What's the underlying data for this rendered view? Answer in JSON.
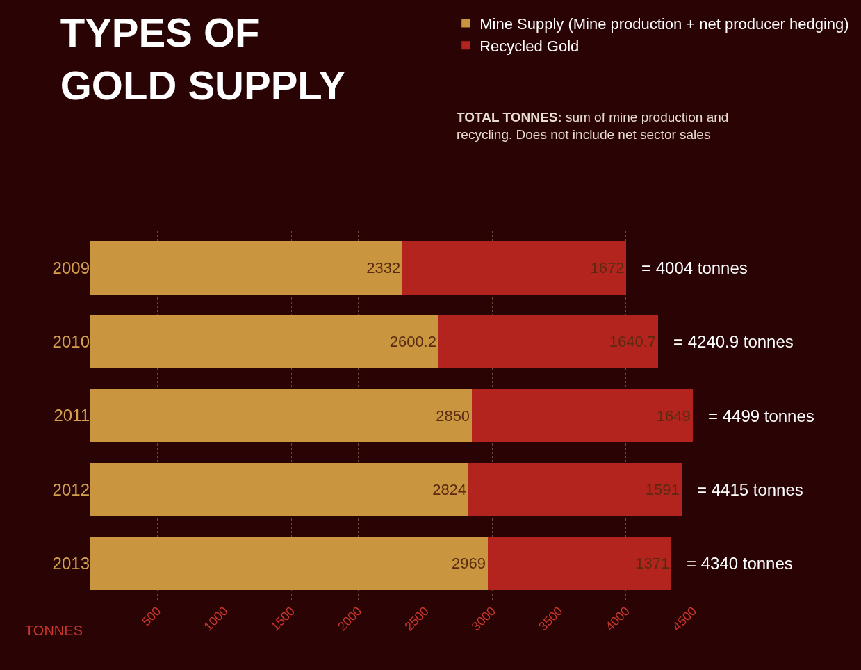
{
  "chart_data": {
    "type": "bar",
    "orientation": "horizontal",
    "stacked": true,
    "title": "TYPES OF\nGOLD SUPPLY",
    "categories": [
      "2009",
      "2010",
      "2011",
      "2012",
      "2013"
    ],
    "series": [
      {
        "name": "Mine Supply (Mine production + net producer hedging)",
        "color": "#c9953f",
        "values": [
          2332,
          2600.2,
          2850,
          2824,
          2969
        ]
      },
      {
        "name": "Recycled Gold",
        "color": "#b3241f",
        "values": [
          1672,
          1640.7,
          1649,
          1591,
          1371
        ]
      }
    ],
    "totals": [
      "= 4004 tonnes",
      "= 4240.9 tonnes",
      "= 4499 tonnes",
      "= 4415 tonnes",
      "= 4340 tonnes"
    ],
    "data_labels": true,
    "xlabel": "TONNES",
    "xlim": [
      0,
      4500
    ],
    "xticks": [
      500,
      1000,
      1500,
      2000,
      2500,
      3000,
      3500,
      4000,
      4500
    ],
    "grid": "x",
    "legend": "top right",
    "annotations": [
      "TOTAL TONNES: sum of mine production and recycling. Does not include net sector sales"
    ]
  }
}
